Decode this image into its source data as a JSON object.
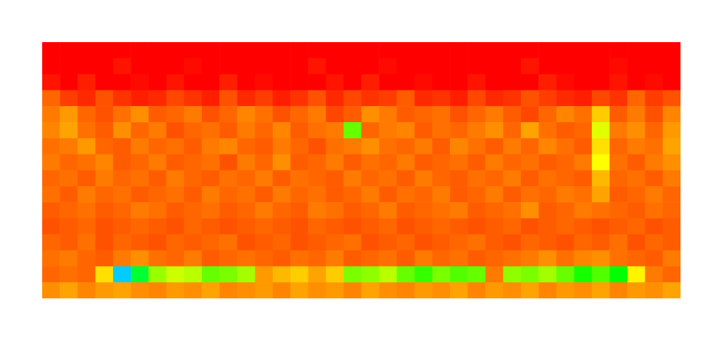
{
  "chart_data": {
    "type": "heatmap",
    "tick_labels": false,
    "color_range": [
      0,
      100
    ],
    "cells": [
      [
        100,
        100,
        100,
        100,
        100,
        100,
        100,
        100,
        100,
        100,
        100,
        100,
        100,
        100,
        100,
        100,
        100,
        100,
        100,
        100,
        100,
        100,
        100,
        100,
        100,
        100,
        100,
        100,
        100,
        100,
        100,
        100,
        100,
        100,
        100,
        100
      ],
      [
        100,
        100,
        100,
        100,
        98,
        100,
        100,
        100,
        99,
        100,
        100,
        100,
        100,
        100,
        100,
        98,
        100,
        100,
        100,
        99,
        100,
        100,
        100,
        100,
        100,
        100,
        100,
        98,
        100,
        100,
        100,
        100,
        99,
        100,
        100,
        100
      ],
      [
        98,
        100,
        97,
        100,
        100,
        99,
        100,
        98,
        100,
        100,
        97,
        100,
        99,
        100,
        100,
        100,
        98,
        100,
        97,
        100,
        100,
        99,
        100,
        100,
        98,
        100,
        100,
        100,
        97,
        99,
        100,
        100,
        98,
        100,
        99,
        100
      ],
      [
        90,
        94,
        96,
        92,
        95,
        97,
        96,
        93,
        95,
        97,
        92,
        96,
        94,
        97,
        95,
        92,
        96,
        93,
        95,
        94,
        91,
        96,
        95,
        97,
        93,
        96,
        95,
        92,
        94,
        96,
        97,
        93,
        95,
        90,
        94,
        92
      ],
      [
        88,
        85,
        90,
        92,
        89,
        86,
        91,
        90,
        88,
        92,
        90,
        87,
        89,
        92,
        90,
        88,
        93,
        91,
        86,
        88,
        91,
        90,
        89,
        92,
        90,
        88,
        91,
        93,
        90,
        87,
        89,
        80,
        91,
        88,
        92,
        87
      ],
      [
        87,
        84,
        89,
        91,
        86,
        90,
        88,
        92,
        90,
        89,
        91,
        88,
        90,
        87,
        91,
        89,
        88,
        60,
        90,
        88,
        87,
        91,
        89,
        90,
        88,
        86,
        90,
        84,
        89,
        91,
        90,
        72,
        88,
        86,
        90,
        85
      ],
      [
        89,
        88,
        85,
        90,
        91,
        88,
        90,
        89,
        91,
        88,
        87,
        90,
        91,
        88,
        90,
        92,
        89,
        88,
        86,
        89,
        90,
        88,
        91,
        87,
        89,
        91,
        88,
        90,
        87,
        89,
        91,
        78,
        90,
        88,
        89,
        84
      ],
      [
        88,
        90,
        89,
        87,
        91,
        90,
        88,
        91,
        90,
        89,
        92,
        88,
        90,
        86,
        91,
        90,
        88,
        91,
        89,
        90,
        88,
        91,
        90,
        89,
        91,
        88,
        90,
        89,
        91,
        90,
        88,
        75,
        89,
        91,
        88,
        86
      ],
      [
        90,
        89,
        91,
        88,
        90,
        89,
        91,
        88,
        90,
        91,
        89,
        90,
        88,
        91,
        89,
        90,
        91,
        88,
        90,
        89,
        91,
        88,
        90,
        91,
        89,
        90,
        88,
        91,
        89,
        90,
        91,
        82,
        90,
        89,
        91,
        88
      ],
      [
        89,
        91,
        88,
        90,
        89,
        91,
        90,
        89,
        91,
        88,
        90,
        89,
        91,
        88,
        90,
        89,
        91,
        90,
        88,
        91,
        89,
        90,
        88,
        91,
        90,
        88,
        91,
        89,
        90,
        88,
        89,
        84,
        91,
        90,
        88,
        90
      ],
      [
        91,
        90,
        89,
        91,
        90,
        88,
        89,
        91,
        90,
        89,
        91,
        90,
        88,
        90,
        91,
        88,
        89,
        91,
        90,
        88,
        91,
        90,
        89,
        88,
        91,
        90,
        89,
        86,
        91,
        90,
        88,
        89,
        90,
        91,
        89,
        90
      ],
      [
        92,
        91,
        90,
        92,
        91,
        90,
        91,
        92,
        90,
        91,
        92,
        91,
        90,
        91,
        92,
        90,
        91,
        92,
        91,
        90,
        92,
        91,
        90,
        91,
        92,
        91,
        90,
        92,
        91,
        90,
        91,
        92,
        91,
        90,
        92,
        91
      ],
      [
        90,
        91,
        89,
        92,
        90,
        91,
        92,
        90,
        91,
        90,
        89,
        92,
        91,
        90,
        92,
        91,
        90,
        89,
        92,
        91,
        90,
        92,
        91,
        90,
        89,
        91,
        92,
        90,
        91,
        92,
        90,
        91,
        89,
        92,
        90,
        91
      ],
      [
        89,
        88,
        90,
        91,
        88,
        86,
        89,
        90,
        88,
        91,
        90,
        89,
        90,
        91,
        89,
        90,
        88,
        91,
        90,
        89,
        91,
        88,
        90,
        89,
        91,
        90,
        89,
        88,
        86,
        89,
        87,
        86,
        89,
        90,
        91,
        88
      ],
      [
        90,
        89,
        90,
        78,
        20,
        45,
        65,
        70,
        68,
        60,
        62,
        66,
        85,
        82,
        80,
        84,
        80,
        62,
        64,
        68,
        60,
        55,
        62,
        58,
        60,
        88,
        64,
        62,
        66,
        60,
        52,
        58,
        50,
        76,
        88,
        90
      ],
      [
        86,
        84,
        87,
        85,
        84,
        86,
        87,
        85,
        86,
        84,
        87,
        86,
        85,
        87,
        84,
        86,
        85,
        87,
        84,
        86,
        87,
        85,
        86,
        84,
        87,
        85,
        86,
        84,
        87,
        85,
        86,
        84,
        87,
        85,
        86,
        84
      ]
    ]
  }
}
